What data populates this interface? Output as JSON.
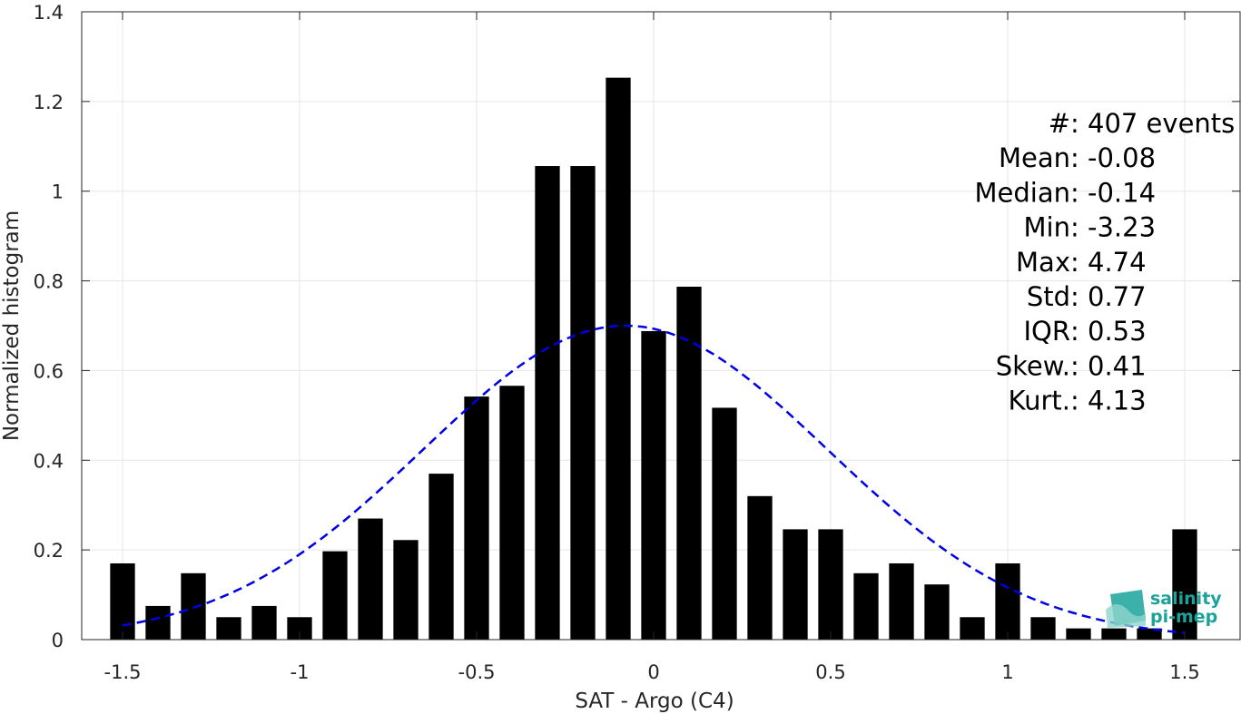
{
  "chart_data": {
    "type": "bar",
    "title": "",
    "xlabel": "SAT - Argo (C4)",
    "ylabel": "Normalized histogram",
    "xlim": [
      -1.6,
      1.6
    ],
    "ylim": [
      0,
      1.4
    ],
    "grid": true,
    "x_ticks": [
      -1.5,
      -1,
      -0.5,
      0,
      0.5,
      1,
      1.5
    ],
    "x_tick_labels": [
      "-1.5",
      "-1",
      "-0.5",
      "0",
      "0.5",
      "1",
      "1.5"
    ],
    "y_ticks": [
      0,
      0.2,
      0.4,
      0.6,
      0.8,
      1,
      1.2,
      1.4
    ],
    "y_tick_labels": [
      "0",
      "0.2",
      "0.4",
      "0.6",
      "0.8",
      "1",
      "1.2",
      "1.4"
    ],
    "bar_width": 0.07,
    "bar_color": "#000000",
    "series": [
      {
        "x": [
          -1.5,
          -1.4,
          -1.3,
          -1.2,
          -1.1,
          -1.0,
          -0.9,
          -0.8,
          -0.7,
          -0.6,
          -0.5,
          -0.4,
          -0.3,
          -0.2,
          -0.1,
          0.0,
          0.1,
          0.2,
          0.3,
          0.4,
          0.5,
          0.6,
          0.7,
          0.8,
          0.9,
          1.0,
          1.1,
          1.2,
          1.3,
          1.4,
          1.5
        ],
        "values": [
          0.17,
          0.075,
          0.148,
          0.05,
          0.075,
          0.05,
          0.197,
          0.27,
          0.222,
          0.37,
          0.542,
          0.566,
          1.056,
          1.056,
          1.253,
          0.688,
          0.787,
          0.517,
          0.32,
          0.246,
          0.246,
          0.148,
          0.17,
          0.123,
          0.05,
          0.17,
          0.05,
          0.025,
          0.025,
          0.025,
          0.246
        ]
      }
    ],
    "fit_curve": {
      "style": "dashed",
      "color": "#0000e6",
      "mean": -0.08,
      "std": 0.57,
      "peak": 0.7,
      "x_range": [
        -1.5,
        1.5
      ]
    },
    "stats": [
      {
        "key": "#  ",
        "value": ": 407 events"
      },
      {
        "key": "Mean ",
        "value": ": -0.08"
      },
      {
        "key": "Median ",
        "value": ": -0.14"
      },
      {
        "key": "Min ",
        "value": ": -3.23"
      },
      {
        "key": "Max ",
        "value": ": 4.74"
      },
      {
        "key": "Std ",
        "value": ": 0.77"
      },
      {
        "key": "IQR ",
        "value": ": 0.53"
      },
      {
        "key": "Skew. ",
        "value": ": 0.41"
      },
      {
        "key": "Kurt. ",
        "value": ": 4.13"
      }
    ]
  },
  "logo": {
    "line1": "salinity",
    "line2": "pi-mep",
    "color": "#1aa39a"
  }
}
